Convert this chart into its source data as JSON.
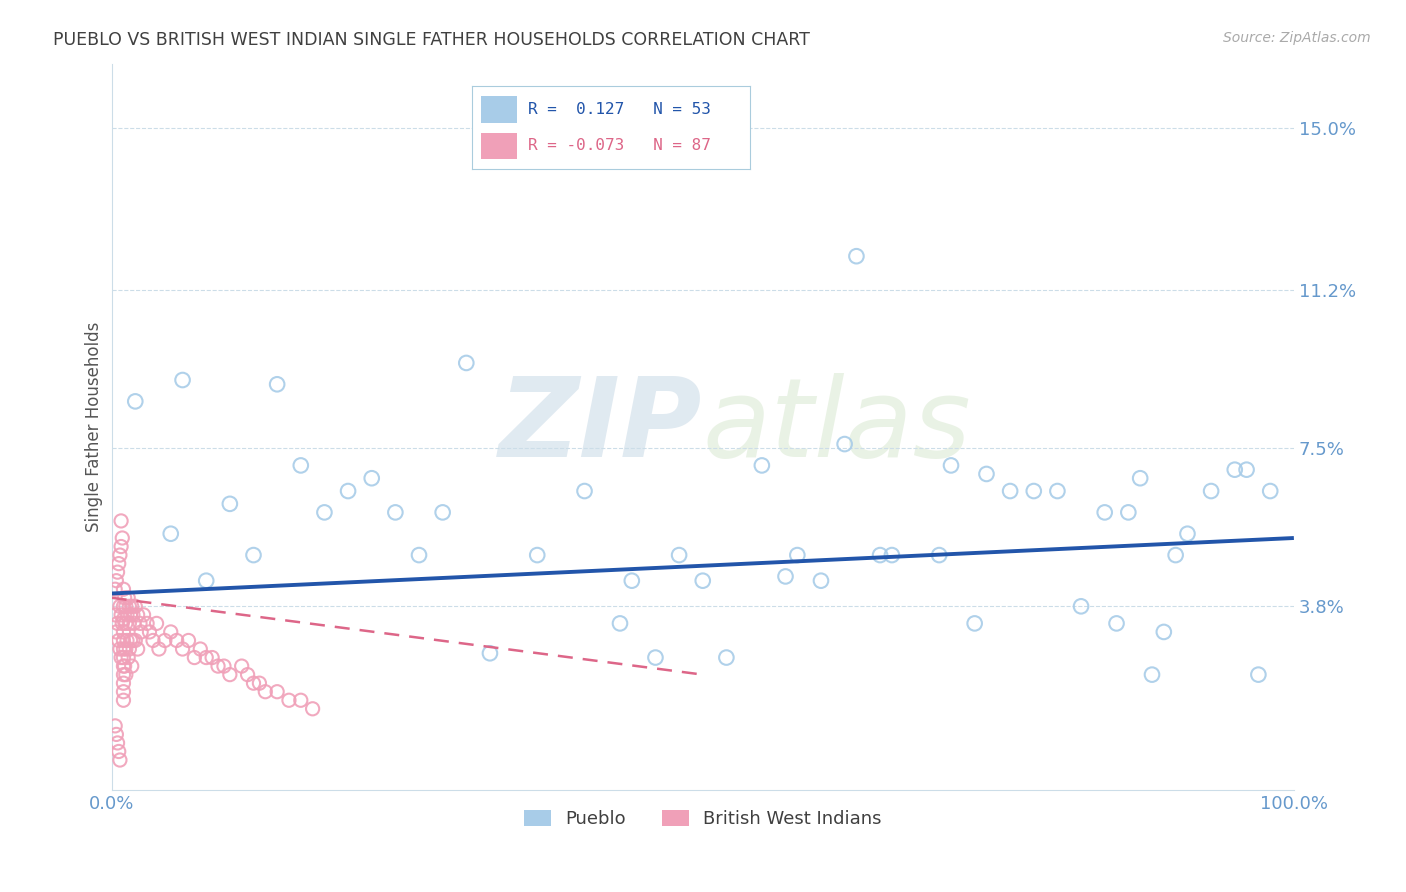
{
  "title": "PUEBLO VS BRITISH WEST INDIAN SINGLE FATHER HOUSEHOLDS CORRELATION CHART",
  "source": "Source: ZipAtlas.com",
  "ylabel": "Single Father Households",
  "watermark": "ZIPatlas",
  "xlim": [
    0,
    1.0
  ],
  "ylim": [
    -0.005,
    0.165
  ],
  "yticks": [
    0.038,
    0.075,
    0.112,
    0.15
  ],
  "ytick_labels": [
    "3.8%",
    "7.5%",
    "11.2%",
    "15.0%"
  ],
  "xticks": [
    0.0,
    0.2,
    0.4,
    0.6,
    0.8,
    1.0
  ],
  "blue_color": "#a8cce8",
  "pink_color": "#f0a0b8",
  "blue_line_color": "#2255aa",
  "pink_line_color": "#dd6688",
  "title_color": "#404040",
  "axis_label_color": "#6699cc",
  "grid_color": "#ccdde8",
  "pueblo_scatter_x": [
    0.02,
    0.1,
    0.14,
    0.22,
    0.3,
    0.44,
    0.48,
    0.6,
    0.63,
    0.66,
    0.71,
    0.76,
    0.82,
    0.84,
    0.87,
    0.9,
    0.93,
    0.96,
    0.05,
    0.08,
    0.16,
    0.2,
    0.26,
    0.36,
    0.5,
    0.55,
    0.62,
    0.7,
    0.74,
    0.8,
    0.86,
    0.91,
    0.95,
    0.12,
    0.18,
    0.24,
    0.32,
    0.4,
    0.43,
    0.52,
    0.57,
    0.65,
    0.73,
    0.85,
    0.88,
    0.97,
    0.06,
    0.28,
    0.46,
    0.58,
    0.78,
    0.89,
    0.98
  ],
  "pueblo_scatter_y": [
    0.086,
    0.062,
    0.09,
    0.068,
    0.095,
    0.044,
    0.05,
    0.044,
    0.12,
    0.05,
    0.071,
    0.065,
    0.038,
    0.06,
    0.068,
    0.05,
    0.065,
    0.07,
    0.055,
    0.044,
    0.071,
    0.065,
    0.05,
    0.05,
    0.044,
    0.071,
    0.076,
    0.05,
    0.069,
    0.065,
    0.06,
    0.055,
    0.07,
    0.05,
    0.06,
    0.06,
    0.027,
    0.065,
    0.034,
    0.026,
    0.045,
    0.05,
    0.034,
    0.034,
    0.022,
    0.022,
    0.091,
    0.06,
    0.026,
    0.05,
    0.065,
    0.032,
    0.065
  ],
  "bwi_scatter_x": [
    0.003,
    0.003,
    0.004,
    0.004,
    0.005,
    0.005,
    0.006,
    0.006,
    0.007,
    0.007,
    0.007,
    0.008,
    0.008,
    0.008,
    0.009,
    0.009,
    0.01,
    0.01,
    0.01,
    0.01,
    0.01,
    0.01,
    0.01,
    0.01,
    0.01,
    0.01,
    0.01,
    0.01,
    0.011,
    0.011,
    0.012,
    0.012,
    0.012,
    0.012,
    0.013,
    0.013,
    0.014,
    0.014,
    0.015,
    0.015,
    0.015,
    0.016,
    0.016,
    0.017,
    0.017,
    0.018,
    0.018,
    0.019,
    0.02,
    0.02,
    0.022,
    0.022,
    0.024,
    0.025,
    0.027,
    0.03,
    0.032,
    0.035,
    0.038,
    0.04,
    0.045,
    0.05,
    0.055,
    0.06,
    0.065,
    0.07,
    0.075,
    0.08,
    0.085,
    0.09,
    0.095,
    0.1,
    0.11,
    0.115,
    0.12,
    0.125,
    0.13,
    0.14,
    0.15,
    0.16,
    0.17,
    0.003,
    0.004,
    0.005,
    0.006,
    0.007,
    0.008
  ],
  "bwi_scatter_y": [
    0.042,
    0.036,
    0.044,
    0.032,
    0.046,
    0.034,
    0.048,
    0.03,
    0.05,
    0.038,
    0.028,
    0.052,
    0.036,
    0.026,
    0.054,
    0.034,
    0.042,
    0.038,
    0.035,
    0.032,
    0.03,
    0.028,
    0.026,
    0.024,
    0.022,
    0.02,
    0.018,
    0.016,
    0.04,
    0.024,
    0.038,
    0.034,
    0.028,
    0.022,
    0.036,
    0.03,
    0.04,
    0.026,
    0.038,
    0.034,
    0.028,
    0.036,
    0.03,
    0.038,
    0.024,
    0.036,
    0.03,
    0.034,
    0.038,
    0.03,
    0.036,
    0.028,
    0.034,
    0.032,
    0.036,
    0.034,
    0.032,
    0.03,
    0.034,
    0.028,
    0.03,
    0.032,
    0.03,
    0.028,
    0.03,
    0.026,
    0.028,
    0.026,
    0.026,
    0.024,
    0.024,
    0.022,
    0.024,
    0.022,
    0.02,
    0.02,
    0.018,
    0.018,
    0.016,
    0.016,
    0.014,
    0.01,
    0.008,
    0.006,
    0.004,
    0.002,
    0.058
  ],
  "blue_trend_x": [
    0.0,
    1.0
  ],
  "blue_trend_y": [
    0.041,
    0.054
  ],
  "pink_trend_x": [
    0.0,
    0.5
  ],
  "pink_trend_y": [
    0.04,
    0.022
  ]
}
